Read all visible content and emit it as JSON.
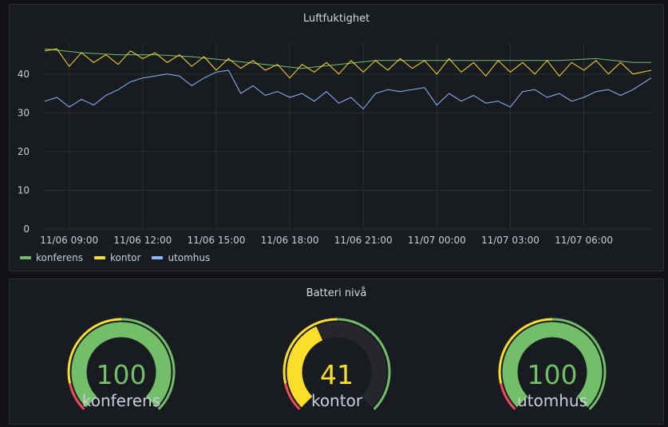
{
  "humidity_panel": {
    "title": "Luftfuktighet",
    "legend": [
      {
        "name": "konferens",
        "color": "#73bf69"
      },
      {
        "name": "kontor",
        "color": "#fade2a"
      },
      {
        "name": "utomhus",
        "color": "#8ab8ff"
      }
    ]
  },
  "chart_data": {
    "type": "line",
    "ylim": [
      0,
      48
    ],
    "yticks": [
      0,
      10,
      20,
      30,
      40
    ],
    "xlim": [
      "11/06 08:00",
      "11/07 08:45"
    ],
    "xticks": [
      "11/06 09:00",
      "11/06 12:00",
      "11/06 15:00",
      "11/06 18:00",
      "11/06 21:00",
      "11/07 00:00",
      "11/07 03:00",
      "11/07 06:00"
    ],
    "grid": true,
    "legend_position": "bottom-left",
    "series": [
      {
        "name": "konferens",
        "color": "#73bf69",
        "x": [
          "11/06 08:00",
          "11/06 09:30",
          "11/06 11:00",
          "11/06 12:30",
          "11/06 14:00",
          "11/06 15:30",
          "11/06 17:00",
          "11/06 18:30",
          "11/06 20:00",
          "11/06 21:30",
          "11/06 23:00",
          "11/07 00:30",
          "11/07 02:00",
          "11/07 03:30",
          "11/07 05:00",
          "11/07 06:30",
          "11/07 08:00",
          "11/07 08:45"
        ],
        "values": [
          46.5,
          45.5,
          45.0,
          45.0,
          44.5,
          43.5,
          42.5,
          41.5,
          42.5,
          43.5,
          43.5,
          43.5,
          43.5,
          43.5,
          43.5,
          44.0,
          43.0,
          43.0
        ]
      },
      {
        "name": "kontor",
        "color": "#fade2a",
        "x": [
          "11/06 08:00",
          "11/06 08:30",
          "11/06 09:00",
          "11/06 09:30",
          "11/06 10:00",
          "11/06 10:30",
          "11/06 11:00",
          "11/06 11:30",
          "11/06 12:00",
          "11/06 12:30",
          "11/06 13:00",
          "11/06 13:30",
          "11/06 14:00",
          "11/06 14:30",
          "11/06 15:00",
          "11/06 15:30",
          "11/06 16:00",
          "11/06 16:30",
          "11/06 17:00",
          "11/06 17:30",
          "11/06 18:00",
          "11/06 18:30",
          "11/06 19:00",
          "11/06 19:30",
          "11/06 20:00",
          "11/06 20:30",
          "11/06 21:00",
          "11/06 21:30",
          "11/06 22:00",
          "11/06 22:30",
          "11/06 23:00",
          "11/06 23:30",
          "11/07 00:00",
          "11/07 00:30",
          "11/07 01:00",
          "11/07 01:30",
          "11/07 02:00",
          "11/07 02:30",
          "11/07 03:00",
          "11/07 03:30",
          "11/07 04:00",
          "11/07 04:30",
          "11/07 05:00",
          "11/07 05:30",
          "11/07 06:00",
          "11/07 06:30",
          "11/07 07:00",
          "11/07 07:30",
          "11/07 08:00",
          "11/07 08:45"
        ],
        "values": [
          46.0,
          46.5,
          42.0,
          45.5,
          43.0,
          45.0,
          42.5,
          46.0,
          44.0,
          45.5,
          43.0,
          45.0,
          42.0,
          44.5,
          41.0,
          44.0,
          41.5,
          43.5,
          41.0,
          42.5,
          39.0,
          42.5,
          40.5,
          43.0,
          40.0,
          43.5,
          40.5,
          43.5,
          41.0,
          44.0,
          41.5,
          43.5,
          40.0,
          44.0,
          40.5,
          43.0,
          39.5,
          43.5,
          40.5,
          43.0,
          40.0,
          43.5,
          39.5,
          43.0,
          41.0,
          43.5,
          40.0,
          43.0,
          40.0,
          41.0
        ]
      },
      {
        "name": "utomhus",
        "color": "#8ab8ff",
        "x": [
          "11/06 08:00",
          "11/06 08:30",
          "11/06 09:00",
          "11/06 09:30",
          "11/06 10:00",
          "11/06 10:30",
          "11/06 11:00",
          "11/06 11:30",
          "11/06 12:00",
          "11/06 12:30",
          "11/06 13:00",
          "11/06 13:30",
          "11/06 14:00",
          "11/06 14:30",
          "11/06 15:00",
          "11/06 15:30",
          "11/06 16:00",
          "11/06 16:30",
          "11/06 17:00",
          "11/06 17:30",
          "11/06 18:00",
          "11/06 18:30",
          "11/06 19:00",
          "11/06 19:30",
          "11/06 20:00",
          "11/06 20:30",
          "11/06 21:00",
          "11/06 21:30",
          "11/06 22:00",
          "11/06 22:30",
          "11/06 23:00",
          "11/06 23:30",
          "11/07 00:00",
          "11/07 00:30",
          "11/07 01:00",
          "11/07 01:30",
          "11/07 02:00",
          "11/07 02:30",
          "11/07 03:00",
          "11/07 03:30",
          "11/07 04:00",
          "11/07 04:30",
          "11/07 05:00",
          "11/07 05:30",
          "11/07 06:00",
          "11/07 06:30",
          "11/07 07:00",
          "11/07 07:30",
          "11/07 08:00",
          "11/07 08:45"
        ],
        "values": [
          33.0,
          34.0,
          31.5,
          33.5,
          32.0,
          34.5,
          36.0,
          38.0,
          39.0,
          39.5,
          40.0,
          39.5,
          37.0,
          39.0,
          40.5,
          41.0,
          35.0,
          37.0,
          34.5,
          35.5,
          34.0,
          35.0,
          33.0,
          35.5,
          32.5,
          34.0,
          31.0,
          35.0,
          36.0,
          35.5,
          36.0,
          36.5,
          32.0,
          35.0,
          33.0,
          34.5,
          32.5,
          33.0,
          31.5,
          35.5,
          36.0,
          34.0,
          35.0,
          33.0,
          34.0,
          35.5,
          36.0,
          34.5,
          36.0,
          39.0
        ]
      }
    ]
  },
  "battery_panel": {
    "title": "Batteri nivå",
    "threshold_colors": {
      "low": "#f2495c",
      "mid": "#fade2a",
      "ok": "#73bf69"
    },
    "gauges": [
      {
        "label": "konferens",
        "value": "100",
        "fraction": 1.0,
        "color": "#73bf69"
      },
      {
        "label": "kontor",
        "value": "41",
        "fraction": 0.41,
        "color": "#fade2a"
      },
      {
        "label": "utomhus",
        "value": "100",
        "fraction": 1.0,
        "color": "#73bf69"
      }
    ]
  }
}
